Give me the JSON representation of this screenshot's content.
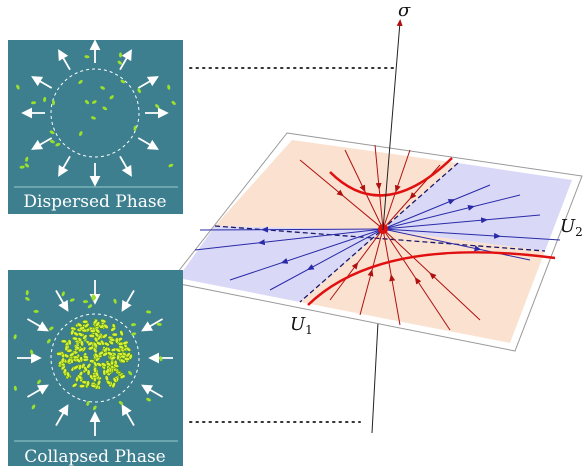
{
  "axis_label": "σ",
  "plane_labels": [
    {
      "symbol": "U",
      "subscript": "1"
    },
    {
      "symbol": "U",
      "subscript": "2"
    }
  ],
  "panels": [
    {
      "caption": "Dispersed Phase"
    },
    {
      "caption": "Collapsed Phase"
    }
  ]
}
